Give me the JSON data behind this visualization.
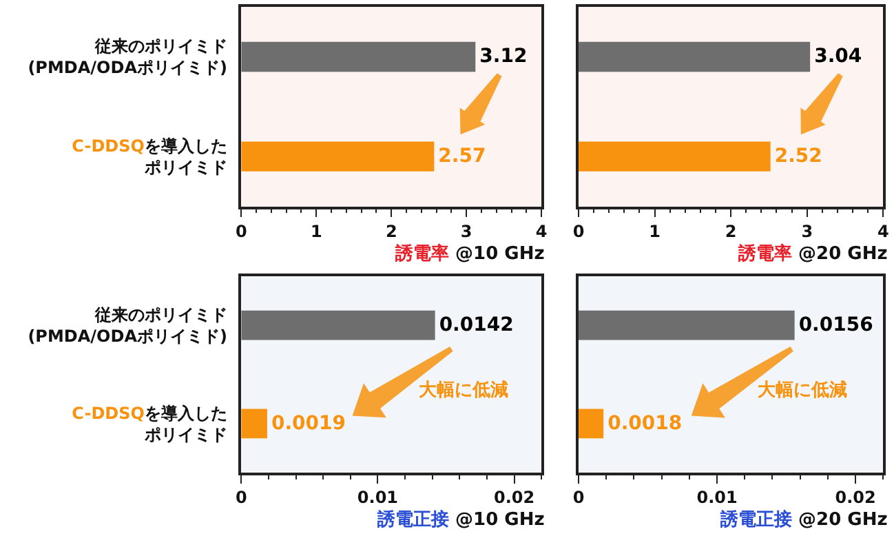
{
  "chart_data": [
    {
      "type": "bar",
      "orientation": "horizontal",
      "categories": [
        "従来のポリイミド\n(PMDA/ODAポリイミド)",
        "C-DDSQを導入したポリイミド"
      ],
      "values": [
        3.12,
        2.57
      ],
      "colors": [
        "#6e6e6e",
        "#f7930f"
      ],
      "data_labels": true,
      "xlim": [
        0,
        4
      ],
      "xticks": [
        0,
        1,
        2,
        3,
        4
      ],
      "xlabel": "誘電率 @10 GHz"
    },
    {
      "type": "bar",
      "orientation": "horizontal",
      "categories": [
        "従来のポリイミド\n(PMDA/ODAポリイミド)",
        "C-DDSQを導入したポリイミド"
      ],
      "values": [
        3.04,
        2.52
      ],
      "colors": [
        "#6e6e6e",
        "#f7930f"
      ],
      "data_labels": true,
      "xlim": [
        0,
        4
      ],
      "xticks": [
        0,
        1,
        2,
        3,
        4
      ],
      "xlabel": "誘電率 @20 GHz",
      "tick_labels": "x"
    },
    {
      "type": "bar",
      "orientation": "horizontal",
      "categories": [
        "従来のポリイミド\n(PMDA/ODAポリイミド)",
        "C-DDSQを導入したポリイミド"
      ],
      "values": [
        0.0142,
        0.0019
      ],
      "colors": [
        "#6e6e6e",
        "#f7930f"
      ],
      "data_labels": true,
      "xlim": [
        0,
        0.022
      ],
      "xticks": [
        0,
        0.01,
        0.02
      ],
      "xlabel": "誘電正接 @10 GHz",
      "annotations": [
        "大幅に低減"
      ]
    },
    {
      "type": "bar",
      "orientation": "horizontal",
      "categories": [
        "従来のポリイミド\n(PMDA/ODAポリイミド)",
        "C-DDSQを導入したポリイミド"
      ],
      "values": [
        0.0156,
        0.0018
      ],
      "colors": [
        "#6e6e6e",
        "#f7930f"
      ],
      "data_labels": true,
      "xlim": [
        0,
        0.022
      ],
      "xticks": [
        0,
        0.01,
        0.02
      ],
      "xlabel": "誘電正接 @20 GHz",
      "tick_labels": "x",
      "annotations": [
        "大幅に低減"
      ]
    }
  ]
}
